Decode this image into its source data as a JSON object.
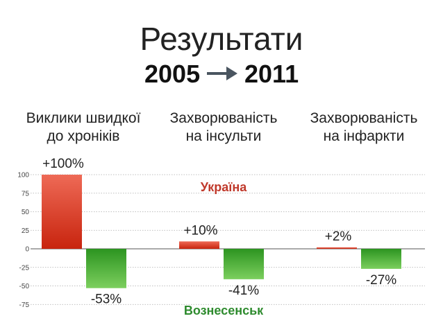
{
  "header": {
    "title": "Результати",
    "year_from": "2005",
    "year_to": "2011"
  },
  "chart_data": {
    "type": "bar",
    "categories": [
      [
        "Виклики швидкої",
        "до хроніків"
      ],
      [
        "Захворюваність",
        "на інсульти"
      ],
      [
        "Захворюваність",
        "на інфаркти"
      ]
    ],
    "series": [
      {
        "name": "Україна",
        "values": [
          100,
          10,
          2
        ],
        "labels": [
          "+100%",
          "+10%",
          "+2%"
        ],
        "color": "#d9301c"
      },
      {
        "name": "Вознесенськ",
        "values": [
          -53,
          -41,
          -27
        ],
        "labels": [
          "-53%",
          "-41%",
          "-27%"
        ],
        "color": "#3aa12e"
      }
    ],
    "yticks": [
      100,
      75,
      50,
      25,
      0,
      -25,
      -50,
      -75
    ],
    "ylim": [
      -75,
      100
    ],
    "grid": true
  }
}
